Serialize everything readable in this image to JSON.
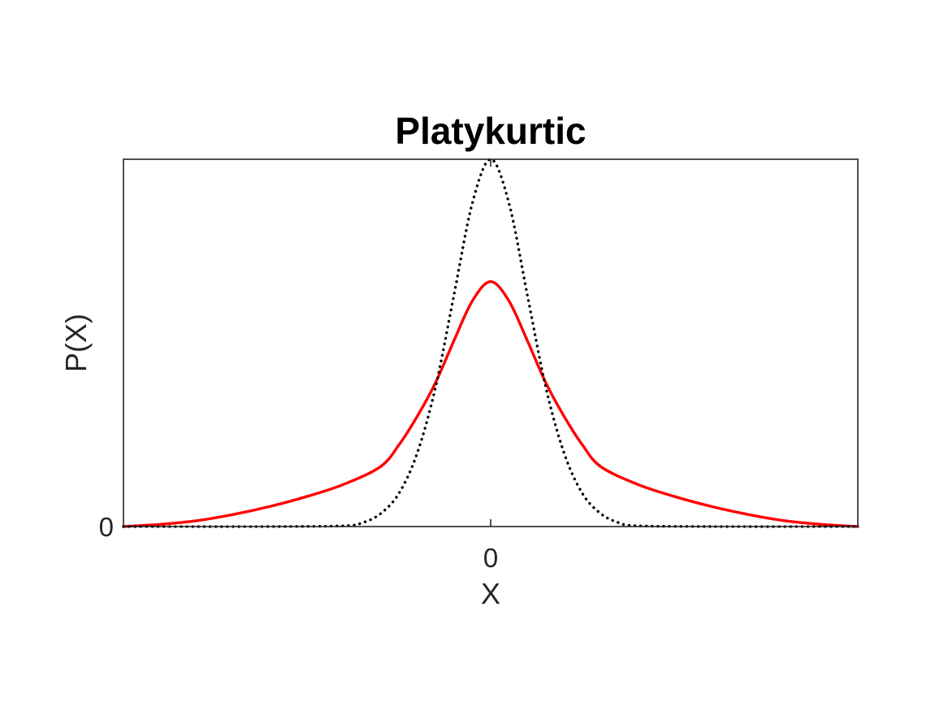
{
  "chart_data": {
    "type": "line",
    "title": "Platykurtic",
    "xlabel": "X",
    "ylabel": "P(X)",
    "xlim": [
      -5,
      5
    ],
    "ylim": [
      0,
      1
    ],
    "x_ticks": [
      {
        "value": 0,
        "label": "0"
      }
    ],
    "y_ticks": [
      {
        "value": 0,
        "label": "0"
      }
    ],
    "grid": false,
    "legend": "none",
    "series": [
      {
        "color": "#ff0000",
        "line_style": "solid",
        "x": [
          -5,
          -4.5,
          -4,
          -3.5,
          -3,
          -2.5,
          -2,
          -1.5,
          -1.25,
          -1,
          -0.75,
          -0.5,
          -0.25,
          0,
          0.25,
          0.5,
          0.75,
          1,
          1.25,
          1.5,
          2,
          2.5,
          3,
          3.5,
          4,
          4.5,
          5
        ],
        "y": [
          0.0,
          0.006,
          0.016,
          0.033,
          0.055,
          0.082,
          0.115,
          0.163,
          0.222,
          0.3,
          0.392,
          0.506,
          0.614,
          0.667,
          0.614,
          0.506,
          0.392,
          0.3,
          0.222,
          0.163,
          0.115,
          0.082,
          0.055,
          0.033,
          0.016,
          0.006,
          0.0
        ]
      },
      {
        "color": "#000000",
        "line_style": "dotted",
        "x": [
          -5,
          -3,
          -2,
          -1.75,
          -1.5,
          -1.25,
          -1,
          -0.75,
          -0.5,
          -0.25,
          0,
          0.25,
          0.5,
          0.75,
          1,
          1.25,
          1.5,
          1.75,
          2,
          3,
          5
        ],
        "y": [
          0.0,
          0.0,
          0.002,
          0.01,
          0.035,
          0.09,
          0.2,
          0.38,
          0.63,
          0.88,
          1.0,
          0.88,
          0.63,
          0.38,
          0.2,
          0.09,
          0.035,
          0.01,
          0.002,
          0.0,
          0.0
        ]
      }
    ]
  }
}
